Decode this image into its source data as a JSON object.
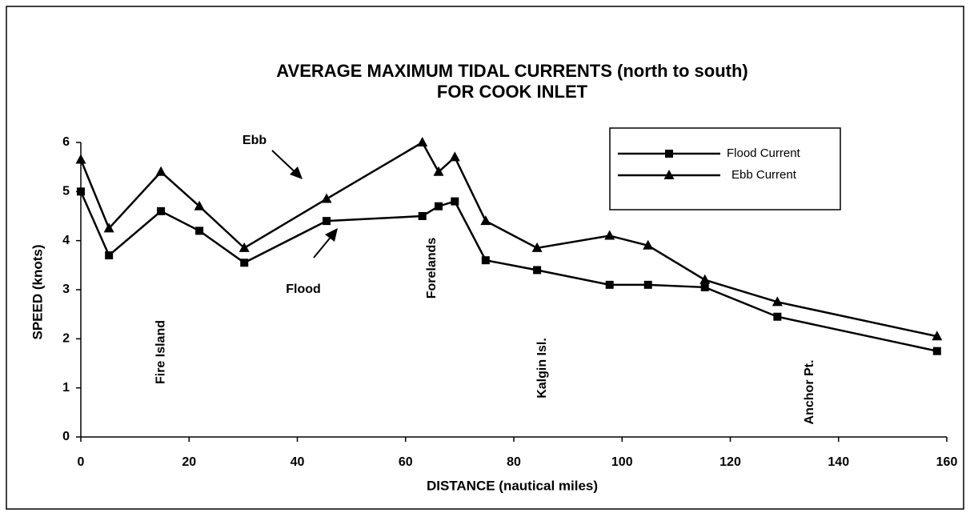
{
  "chart_data": {
    "type": "line",
    "title": "AVERAGE  MAXIMUM  TIDAL  CURRENTS  (north to south)",
    "subtitle": "FOR  COOK  INLET",
    "x_label": "DISTANCE  (nautical miles)",
    "y_label": "SPEED  (knots)",
    "x": [
      0,
      5.2,
      14.8,
      21.9,
      30.2,
      45.4,
      63.1,
      66.1,
      69.1,
      74.8,
      84.3,
      97.7,
      104.8,
      115.3,
      128.7,
      158.2
    ],
    "series": [
      {
        "name": "Flood Current",
        "marker": "square",
        "color": "#000000",
        "values": [
          5.0,
          3.7,
          4.6,
          4.2,
          3.55,
          4.4,
          4.5,
          4.7,
          4.8,
          3.6,
          3.4,
          3.1,
          3.1,
          3.05,
          2.45,
          1.75
        ]
      },
      {
        "name": "Ebb Current",
        "marker": "triangle",
        "color": "#000000",
        "values": [
          5.65,
          4.25,
          5.4,
          4.7,
          3.85,
          4.85,
          6.0,
          5.4,
          5.7,
          4.4,
          3.85,
          4.1,
          3.9,
          3.2,
          2.75,
          2.05
        ]
      }
    ],
    "xlim": [
      0,
      160
    ],
    "xticks": [
      0,
      20,
      40,
      60,
      80,
      100,
      120,
      140,
      160
    ],
    "ylim": [
      0,
      6
    ],
    "yticks": [
      0,
      1,
      2,
      3,
      4,
      5,
      6
    ],
    "grid": false,
    "legend": "upper right",
    "annotations": [
      {
        "text": "Ebb",
        "kind": "arrow"
      },
      {
        "text": "Flood",
        "kind": "arrow"
      },
      {
        "text": "Fire Island",
        "kind": "place",
        "x": 14.8
      },
      {
        "text": "Forelands",
        "kind": "place",
        "x": 64.9
      },
      {
        "text": "Kalgin Isl.",
        "kind": "place",
        "x": 85.3
      },
      {
        "text": "Anchor Pt.",
        "kind": "place",
        "x": 134.7
      }
    ]
  }
}
